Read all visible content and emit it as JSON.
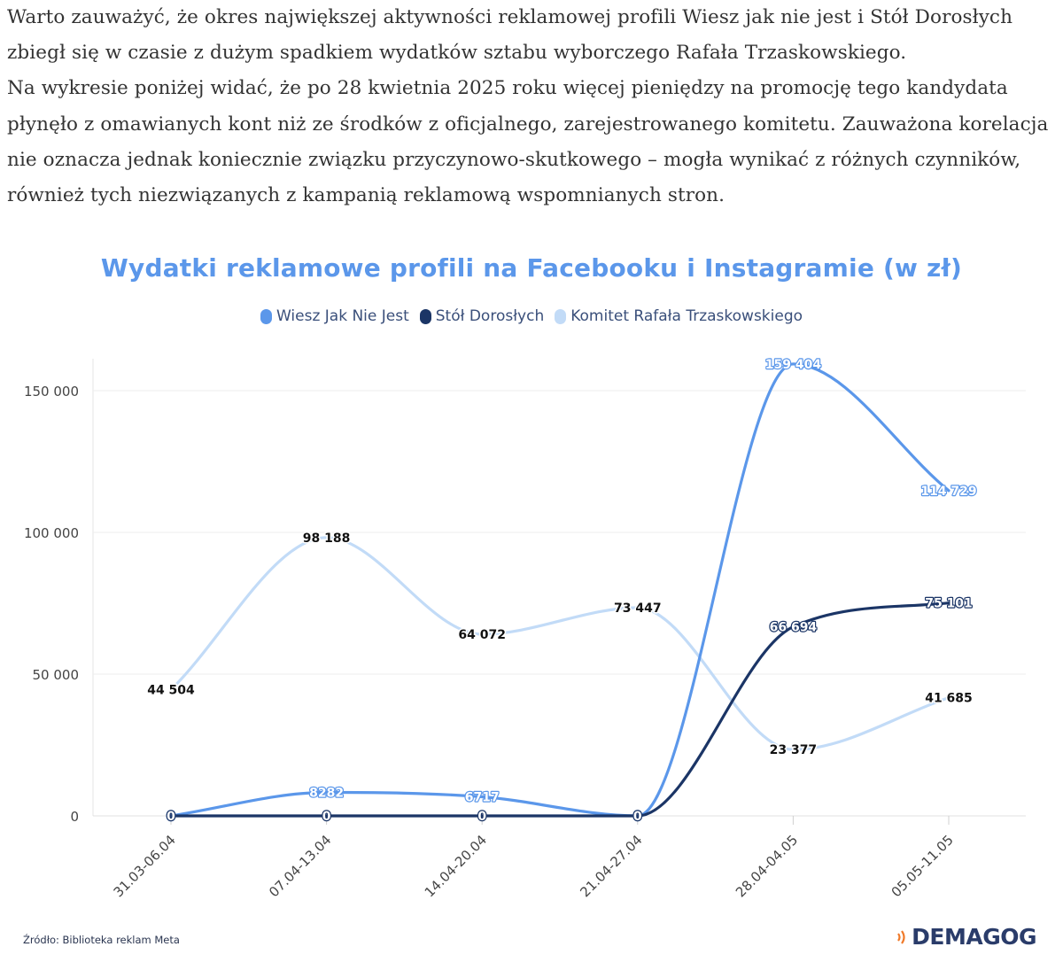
{
  "article": {
    "paragraphs": [
      "Warto zauważyć, że okres największej aktywności reklamowej profili Wiesz jak nie jest i Stół Dorosłych zbiegł się w czasie z dużym spadkiem wydatków sztabu wyborczego Rafała Trzaskowskiego.",
      "Na wykresie poniżej widać, że po 28 kwietnia 2025 roku więcej pieniędzy na promocję tego kandydata płynęło z omawianych kont niż ze środków z oficjalnego, zarejestrowanego komitetu. Zauważona korelacja nie oznacza jednak koniecznie związku przyczynowo-skutkowego – mogła wynikać z różnych czynników, również tych niezwiązanych z kampanią reklamową wspomnianych stron."
    ]
  },
  "chart_data": {
    "type": "line",
    "title": "Wydatki reklamowe profili na Facebooku i Instagramie (w zł)",
    "categories": [
      "31.03-06.04",
      "07.04-13.04",
      "14.04-20.04",
      "21.04-27.04",
      "28.04-04.05",
      "05.05-11.05"
    ],
    "series": [
      {
        "name": "Wiesz Jak Nie Jest",
        "color": "#5b97ea",
        "values": [
          0,
          8282,
          6717,
          0,
          159404,
          114729
        ],
        "labels": [
          "0",
          "8282",
          "6717",
          "0",
          "159 404",
          "114 729"
        ]
      },
      {
        "name": "Stół Dorosłych",
        "color": "#1b3566",
        "values": [
          0,
          0,
          0,
          0,
          66694,
          75101
        ],
        "labels": [
          "0",
          "0",
          "0",
          "0",
          "66 694",
          "75 101"
        ]
      },
      {
        "name": "Komitet Rafała Trzaskowskiego",
        "color": "#c2dbf7",
        "values": [
          44504,
          98188,
          64072,
          73447,
          23377,
          41685
        ],
        "labels": [
          "44 504",
          "98 188",
          "64 072",
          "73 447",
          "23 377",
          "41 685"
        ]
      }
    ],
    "yticks": [
      0,
      50000,
      100000,
      150000
    ],
    "ytick_labels": [
      "0",
      "50 000",
      "100 000",
      "150 000"
    ],
    "ylim": [
      0,
      160000
    ],
    "grid": true,
    "legend": "top-center"
  },
  "footer": {
    "source": "Źródło: Biblioteka reklam Meta",
    "logo": "DEMAGOG"
  }
}
